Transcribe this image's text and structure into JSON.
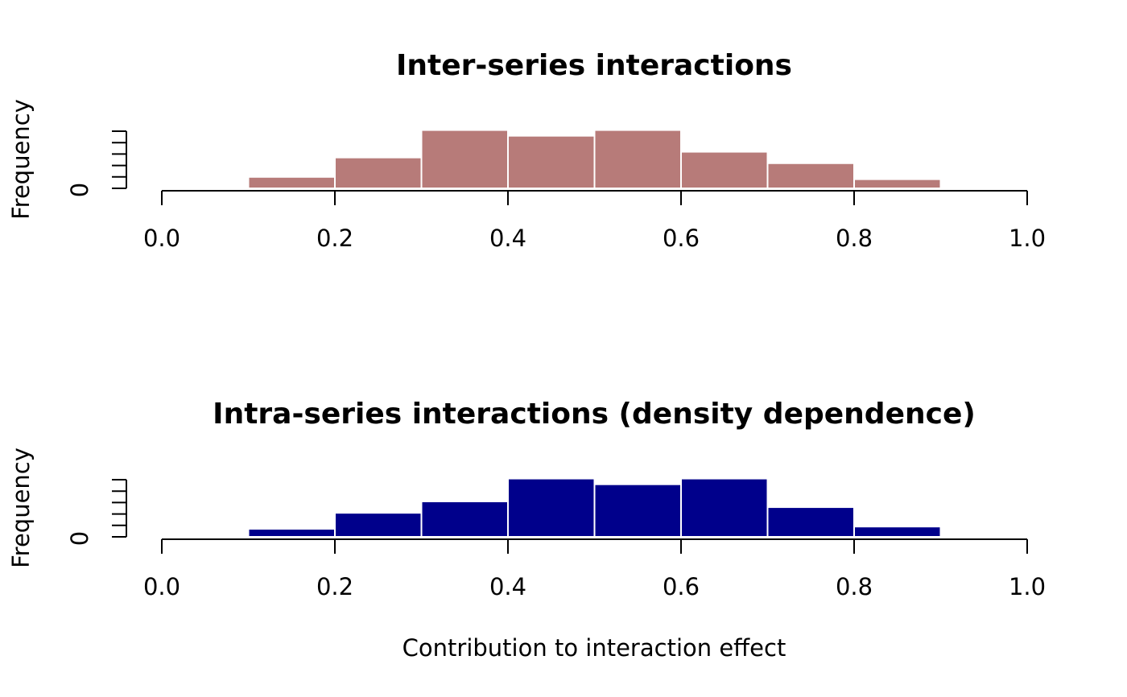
{
  "chart_data": [
    {
      "type": "bar",
      "title": "Inter-series interactions",
      "xlabel": "",
      "ylabel": "Frequency",
      "bin_edges": [
        0.0,
        0.1,
        0.2,
        0.3,
        0.4,
        0.5,
        0.6,
        0.7,
        0.8,
        0.9,
        1.0
      ],
      "values": [
        0.02,
        1.0,
        2.7,
        5.1,
        4.6,
        5.1,
        3.2,
        2.2,
        0.8,
        0.0
      ],
      "x_ticks": [
        "0.0",
        "0.2",
        "0.4",
        "0.6",
        "0.8",
        "1.0"
      ],
      "y_tick_label": "0",
      "xlim": [
        0,
        1
      ],
      "ylim": [
        0,
        5.1
      ],
      "y_tick_values": [
        0,
        1,
        2,
        3,
        4,
        5
      ],
      "bar_color": "#B77B79",
      "grid": false
    },
    {
      "type": "bar",
      "title": "Intra-series interactions (density dependence)",
      "xlabel": "Contribution to interaction effect",
      "ylabel": "Frequency",
      "bin_edges": [
        0.0,
        0.1,
        0.2,
        0.3,
        0.4,
        0.5,
        0.6,
        0.7,
        0.8,
        0.9,
        1.0
      ],
      "values": [
        0.0,
        0.7,
        2.1,
        3.1,
        5.1,
        4.6,
        5.1,
        2.6,
        0.9,
        0.02
      ],
      "x_ticks": [
        "0.0",
        "0.2",
        "0.4",
        "0.6",
        "0.8",
        "1.0"
      ],
      "y_tick_label": "0",
      "xlim": [
        0,
        1
      ],
      "ylim": [
        0,
        5.1
      ],
      "y_tick_values": [
        0,
        1,
        2,
        3,
        4,
        5
      ],
      "bar_color": "#00008B",
      "grid": false
    }
  ]
}
